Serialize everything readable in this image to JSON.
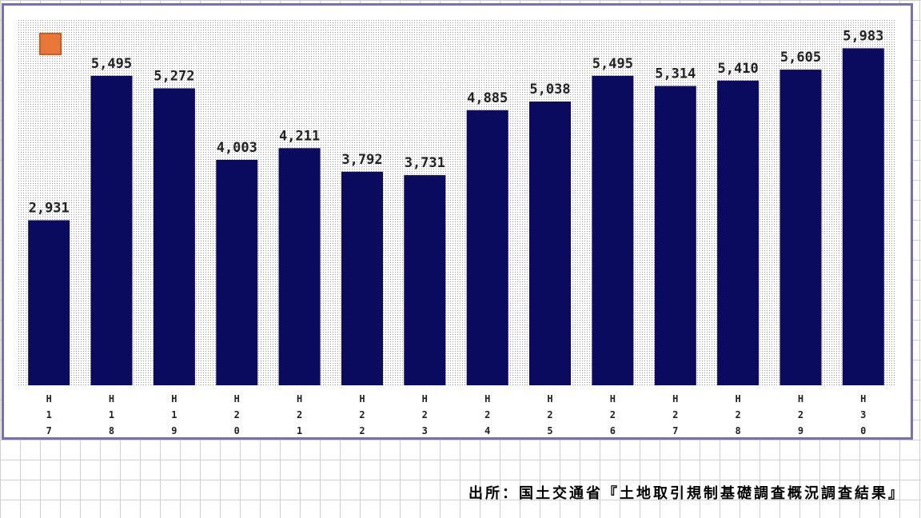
{
  "chart_data": {
    "type": "bar",
    "categories": [
      "H17",
      "H18",
      "H19",
      "H20",
      "H21",
      "H22",
      "H23",
      "H24",
      "H25",
      "H26",
      "H27",
      "H28",
      "H29",
      "H30"
    ],
    "values": [
      2931,
      5495,
      5272,
      4003,
      4211,
      3792,
      3731,
      4885,
      5038,
      5495,
      5314,
      5410,
      5605,
      5983
    ],
    "value_labels": [
      "2,931",
      "5,495",
      "5,272",
      "4,003",
      "4,211",
      "3,792",
      "3,731",
      "4,885",
      "5,038",
      "5,495",
      "5,314",
      "5,410",
      "5,605",
      "5,983"
    ],
    "tick_labels": [
      [
        "H",
        "1",
        "7"
      ],
      [
        "H",
        "1",
        "8"
      ],
      [
        "H",
        "1",
        "9"
      ],
      [
        "H",
        "2",
        "0"
      ],
      [
        "H",
        "2",
        "1"
      ],
      [
        "H",
        "2",
        "2"
      ],
      [
        "H",
        "2",
        "3"
      ],
      [
        "H",
        "2",
        "4"
      ],
      [
        "H",
        "2",
        "5"
      ],
      [
        "H",
        "2",
        "6"
      ],
      [
        "H",
        "2",
        "7"
      ],
      [
        "H",
        "2",
        "8"
      ],
      [
        "H",
        "2",
        "9"
      ],
      [
        "H",
        "3",
        "0"
      ]
    ],
    "ylim": [
      0,
      6500
    ],
    "grid": false,
    "bar_color": "#0a0a5e",
    "title": "",
    "xlabel": "",
    "ylabel": ""
  },
  "source_note": "出所：国土交通省『土地取引規制基礎調査概況調査結果』",
  "badge": {
    "icon": "logo-badge-icon",
    "text": "",
    "color": "#e8773a"
  }
}
